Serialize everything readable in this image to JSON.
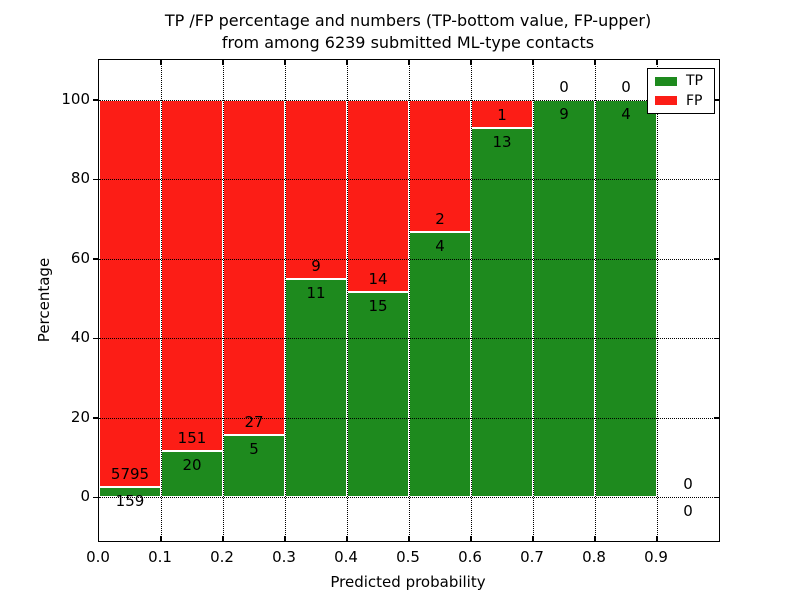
{
  "chart_data": {
    "type": "bar",
    "stacked": true,
    "title_line1": "TP /FP percentage and numbers (TP-bottom value, FP-upper)",
    "title_line2": "from among 6239 submitted ML-type contacts",
    "xlabel": "Predicted probability",
    "ylabel": "Percentage",
    "x_ticks": [
      "0.0",
      "0.1",
      "0.2",
      "0.3",
      "0.4",
      "0.5",
      "0.6",
      "0.7",
      "0.8",
      "0.9"
    ],
    "y_ticks": [
      0,
      20,
      40,
      60,
      80,
      100
    ],
    "xlim": [
      0.0,
      1.0
    ],
    "ylim": [
      -11,
      110
    ],
    "grid": true,
    "legend_position": "upper right",
    "legend": [
      {
        "label": "TP",
        "color": "#1e8a1e"
      },
      {
        "label": "FP",
        "color": "#fc1d16"
      }
    ],
    "bins": [
      {
        "x0": 0.0,
        "x1": 0.1,
        "tp": 159,
        "fp": 5795
      },
      {
        "x0": 0.1,
        "x1": 0.2,
        "tp": 20,
        "fp": 151
      },
      {
        "x0": 0.2,
        "x1": 0.3,
        "tp": 5,
        "fp": 27
      },
      {
        "x0": 0.3,
        "x1": 0.4,
        "tp": 11,
        "fp": 9
      },
      {
        "x0": 0.4,
        "x1": 0.5,
        "tp": 15,
        "fp": 14
      },
      {
        "x0": 0.5,
        "x1": 0.6,
        "tp": 4,
        "fp": 2
      },
      {
        "x0": 0.6,
        "x1": 0.7,
        "tp": 13,
        "fp": 1
      },
      {
        "x0": 0.7,
        "x1": 0.8,
        "tp": 9,
        "fp": 0
      },
      {
        "x0": 0.8,
        "x1": 0.9,
        "tp": 4,
        "fp": 0
      },
      {
        "x0": 0.9,
        "x1": 1.0,
        "tp": 0,
        "fp": 0
      }
    ]
  }
}
